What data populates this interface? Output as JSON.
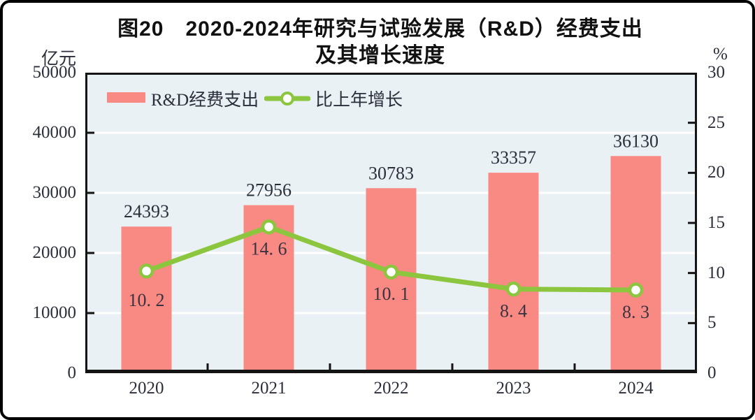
{
  "title": {
    "line1": "图20　2020-2024年研究与试验发展（R&D）经费支出",
    "line2": "及其增长速度"
  },
  "left_axis": {
    "unit": "亿元",
    "ticks": [
      "50000",
      "40000",
      "30000",
      "20000",
      "10000",
      "0"
    ],
    "min": 0,
    "max": 50000,
    "step": 10000
  },
  "right_axis": {
    "unit": "%",
    "ticks": [
      "30",
      "25",
      "20",
      "15",
      "10",
      "5",
      "0"
    ],
    "min": 0,
    "max": 30,
    "step": 5
  },
  "legend": {
    "bar_label": "R&D经费支出",
    "line_label": "比上年增长"
  },
  "chart_data": {
    "type": "bar",
    "title": "图20 2020-2024年研究与试验发展（R&D）经费支出及其增长速度",
    "categories": [
      "2020",
      "2021",
      "2022",
      "2023",
      "2024"
    ],
    "series": [
      {
        "name": "R&D经费支出",
        "type": "bar",
        "axis": "left",
        "values": [
          24393,
          27956,
          30783,
          33357,
          36130
        ],
        "labels": [
          "24393",
          "27956",
          "30783",
          "33357",
          "36130"
        ]
      },
      {
        "name": "比上年增长",
        "type": "line",
        "axis": "right",
        "values": [
          10.2,
          14.6,
          10.1,
          8.4,
          8.3
        ],
        "labels": [
          "10. 2",
          "14. 6",
          "10. 1",
          "8. 4",
          "8. 3"
        ]
      }
    ],
    "ylabel_left": "亿元",
    "ylabel_right": "%",
    "ylim_left": [
      0,
      50000
    ],
    "ylim_right": [
      0,
      30
    ],
    "grid": true,
    "legend_position": "top-left",
    "colors": {
      "bar": "#F98983",
      "line": "#8CC63F",
      "marker_fill": "#FFFFFF",
      "plot_bg": "#E9F1F4",
      "grid": "#FFFFFF",
      "text": "#2B2F3B",
      "border": "#141414"
    }
  }
}
